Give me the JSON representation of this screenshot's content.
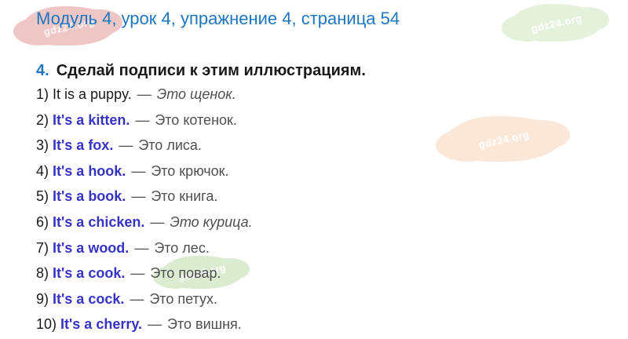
{
  "header": {
    "title": "Модуль 4, урок 4, упражнение 4, страница 54"
  },
  "exercise": {
    "number": "4.",
    "instruction": "Сделай подписи к этим иллюстрациям."
  },
  "answers": [
    {
      "num": "1)",
      "en": "It is a puppy.",
      "dash": "—",
      "ru": "Это щенок.",
      "en_style": "plain",
      "ru_style": "italic"
    },
    {
      "num": "2)",
      "en": "It's a kitten.",
      "dash": "—",
      "ru": "Это котенок.",
      "en_style": "accent",
      "ru_style": "regular"
    },
    {
      "num": "3)",
      "en": "It's a fox.",
      "dash": "—",
      "ru": "Это лиса.",
      "en_style": "accent",
      "ru_style": "regular"
    },
    {
      "num": "4)",
      "en": "It's a hook.",
      "dash": "—",
      "ru": "Это крючок.",
      "en_style": "accent",
      "ru_style": "regular"
    },
    {
      "num": "5)",
      "en": "It's a book.",
      "dash": "—",
      "ru": "Это книга.",
      "en_style": "accent",
      "ru_style": "regular"
    },
    {
      "num": "6)",
      "en": "It's a chicken.",
      "dash": "—",
      "ru": "Это курица.",
      "en_style": "accent",
      "ru_style": "italic"
    },
    {
      "num": "7)",
      "en": "It's a wood.",
      "dash": "—",
      "ru": "Это лес.",
      "en_style": "accent",
      "ru_style": "regular"
    },
    {
      "num": "8)",
      "en": "It's a cook.",
      "dash": "—",
      "ru": "Это повар.",
      "en_style": "accent",
      "ru_style": "regular"
    },
    {
      "num": "9)",
      "en": "It's a cock.",
      "dash": "—",
      "ru": "Это петух.",
      "en_style": "accent",
      "ru_style": "regular"
    },
    {
      "num": "10)",
      "en": "It's a cherry.",
      "dash": "—",
      "ru": "Это вишня.",
      "en_style": "accent",
      "ru_style": "regular"
    }
  ],
  "watermark": {
    "text": "gdz24.org"
  },
  "colors": {
    "title_blue": "#1c76c0",
    "answer_blue": "#3633c2",
    "text_dark": "#1a1a1a",
    "text_gray": "#4f4f4f",
    "blob_pink": "#efc6c6",
    "blob_green_light": "#e4f1db",
    "blob_peach": "#fbe7d7",
    "blob_green": "#dcecd1"
  }
}
